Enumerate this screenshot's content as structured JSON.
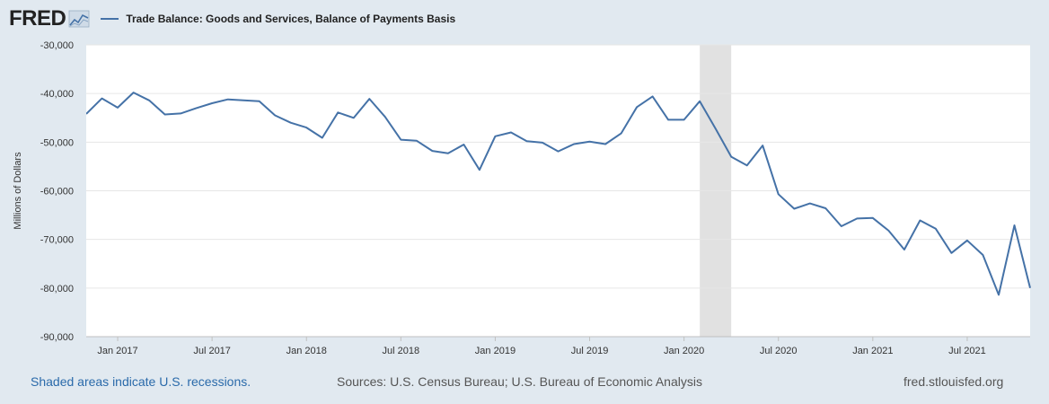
{
  "logo": {
    "text": "FRED",
    "icon": "chart-line-icon"
  },
  "legend": {
    "series_label": "Trade Balance: Goods and Services, Balance of Payments Basis",
    "color": "#4572a7"
  },
  "footer": {
    "recession_note": "Shaded areas indicate U.S. recessions.",
    "sources": "Sources: U.S. Census Bureau; U.S. Bureau of Economic Analysis",
    "site": "fred.stlouisfed.org"
  },
  "chart_data": {
    "type": "line",
    "title": "",
    "xlabel": "",
    "ylabel": "Millions of Dollars",
    "ylim": [
      -90000,
      -30000
    ],
    "yticks": [
      -30000,
      -40000,
      -50000,
      -60000,
      -70000,
      -80000,
      -90000
    ],
    "ytick_labels": [
      "-30,000",
      "-40,000",
      "-50,000",
      "-60,000",
      "-70,000",
      "-80,000",
      "-90,000"
    ],
    "xlim": [
      "2016-11",
      "2021-11"
    ],
    "xticks": [
      "2017-01",
      "2017-07",
      "2018-01",
      "2018-07",
      "2019-01",
      "2019-07",
      "2020-01",
      "2020-07",
      "2021-01",
      "2021-07"
    ],
    "xtick_labels": [
      "Jan 2017",
      "Jul 2017",
      "Jan 2018",
      "Jul 2018",
      "Jan 2019",
      "Jul 2019",
      "Jan 2020",
      "Jul 2020",
      "Jan 2021",
      "Jul 2021"
    ],
    "grid": true,
    "recession": {
      "start": "2020-02",
      "end": "2020-04",
      "color": "#e1e1e1"
    },
    "series": [
      {
        "name": "Trade Balance: Goods and Services, Balance of Payments Basis",
        "color": "#4572a7",
        "x": [
          "2016-11",
          "2016-12",
          "2017-01",
          "2017-02",
          "2017-03",
          "2017-04",
          "2017-05",
          "2017-06",
          "2017-07",
          "2017-08",
          "2017-09",
          "2017-10",
          "2017-11",
          "2017-12",
          "2018-01",
          "2018-02",
          "2018-03",
          "2018-04",
          "2018-05",
          "2018-06",
          "2018-07",
          "2018-08",
          "2018-09",
          "2018-10",
          "2018-11",
          "2018-12",
          "2019-01",
          "2019-02",
          "2019-03",
          "2019-04",
          "2019-05",
          "2019-06",
          "2019-07",
          "2019-08",
          "2019-09",
          "2019-10",
          "2019-11",
          "2019-12",
          "2020-01",
          "2020-02",
          "2020-03",
          "2020-04",
          "2020-05",
          "2020-06",
          "2020-07",
          "2020-08",
          "2020-09",
          "2020-10",
          "2020-11",
          "2020-12",
          "2021-01",
          "2021-02",
          "2021-03",
          "2021-04",
          "2021-05",
          "2021-06",
          "2021-07",
          "2021-08",
          "2021-09",
          "2021-10",
          "2021-11"
        ],
        "y": [
          -44200,
          -41000,
          -42900,
          -39800,
          -41400,
          -44300,
          -44100,
          -43000,
          -42000,
          -41200,
          -41400,
          -41600,
          -44500,
          -46000,
          -47000,
          -49100,
          -43900,
          -45000,
          -41100,
          -44800,
          -49500,
          -49700,
          -51800,
          -52300,
          -50500,
          -55700,
          -48800,
          -48000,
          -49800,
          -50100,
          -51900,
          -50400,
          -49900,
          -50400,
          -48200,
          -42800,
          -40600,
          -45400,
          -45400,
          -41600,
          -47200,
          -53000,
          -54800,
          -50700,
          -60700,
          -63700,
          -62600,
          -63600,
          -67300,
          -65700,
          -65600,
          -68200,
          -72100,
          -66100,
          -67800,
          -72800,
          -70200,
          -73200,
          -81400,
          -67100,
          -80000
        ]
      }
    ]
  }
}
